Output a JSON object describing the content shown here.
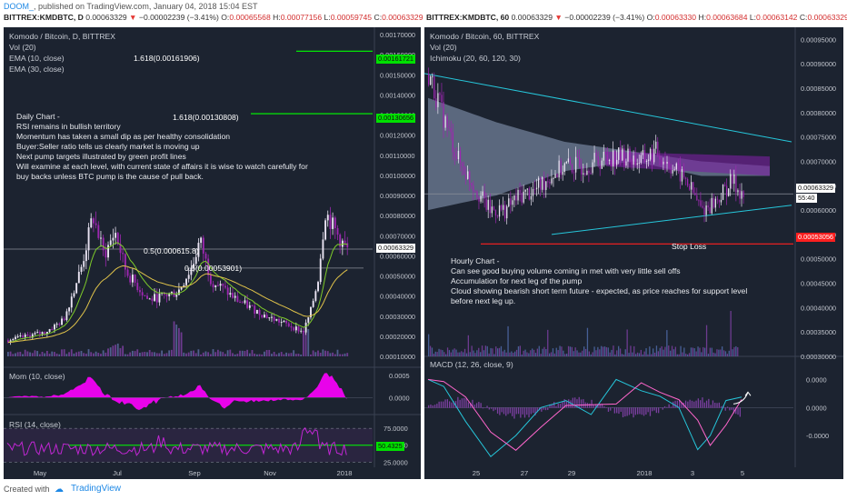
{
  "header": {
    "user": "DOOM_",
    "published": ", published on TradingView.com, January 04, 2018 15:04 EST"
  },
  "left_quote": {
    "symbol": "BITTREX:KMDBTC, D",
    "price": "0.00063329",
    "arrow": "▼",
    "change": "−0.00002239 (−3.41%)",
    "o_label": "O:",
    "o": "0.00065568",
    "h_label": "H:",
    "h": "0.00077156",
    "l_label": "L:",
    "l": "0.00059745",
    "c_label": "C:",
    "c": "0.00063329"
  },
  "right_quote": {
    "symbol": "BITTREX:KMDBTC, 60",
    "price": "0.00063329",
    "arrow": "▼",
    "change": "−0.00002239 (−3.41%)",
    "o_label": "O:",
    "o": "0.00063330",
    "h_label": "H:",
    "h": "0.00063684",
    "l_label": "L:",
    "l": "0.00063142",
    "c_label": "C:",
    "c": "0.00063329"
  },
  "left_chart": {
    "title": "Komodo / Bitcoin, D, BITTREX",
    "indicators": [
      "Vol (20)",
      "EMA (10, close)",
      "EMA (30, close)"
    ],
    "fib_labels": [
      "1.618(0.00161906)",
      "1.618(0.00130808)",
      "0.5(0.000615.8)",
      "0.5(0.00053901)"
    ],
    "note": [
      "Daily Chart -",
      "RSI remains in bullish territory",
      "Momentum has taken a small dip as per healthy consolidation",
      "Buyer:Seller ratio tells us clearly market is moving up",
      "Next pump targets illustrated by green profit lines",
      "Will examine at each level, with current state of affairs it is wise to watch carefully for",
      "buy backs unless BTC pump is the cause of pull back."
    ],
    "price_box": "0.00063329",
    "green_box_1": "0.00161721",
    "green_box_2": "0.00130656",
    "mom_label": "Mom (10, close)",
    "rsi_label": "RSI (14, close)",
    "rsi_box": "50.4325",
    "colors": {
      "candle_up": "#e9e3f2",
      "candle_down": "#9c27b0",
      "ema10": "#7ecb2a",
      "ema30": "#e0c34a",
      "mom": "#ff00ff",
      "rsi": "#c026d3",
      "fib_green": "#00ff00"
    }
  },
  "right_chart": {
    "title": "Komodo / Bitcoin, 60, BITTREX",
    "indicators": [
      "Vol (20)",
      "Ichimoku (20, 60, 120, 30)"
    ],
    "stop_loss": "Stop Loss",
    "price_box": "0.00063329",
    "time_box": "55:40",
    "red_box": "0.00053056",
    "note": [
      "Hourly Chart -",
      "Can see good buying volume coming in met with very little sell offs",
      "Accumulation for next leg of the pump",
      "Cloud showing bearish short term future - expected, as price reaches for support level",
      "before next leg up."
    ],
    "macd_label": "MACD (12, 26, close, 9)",
    "colors": {
      "trendline": "#26c6da",
      "cloud": "#8fa3c0",
      "cloud_bear": "#7b1fa2",
      "stop": "#ff1f1f",
      "macd": "#26c6da",
      "signal": "#ff66cc"
    }
  },
  "chart_data": [
    {
      "type": "candlestick",
      "title": "Komodo / Bitcoin, D, BITTREX",
      "ylim": [
        0.0001,
        0.0017
      ],
      "yticks": [
        0.0017,
        0.0016,
        0.0015,
        0.0014,
        0.0013,
        0.0012,
        0.0011,
        0.001,
        0.0009,
        0.0008,
        0.0007,
        0.0006,
        0.0005,
        0.0004,
        0.0003,
        0.0002,
        0.0001
      ],
      "ytick_labels": [
        "0.00170000",
        "0.00160000",
        "0.00150000",
        "0.00140000",
        "0.00130000",
        "0.00120000",
        "0.00110000",
        "0.00100000",
        "0.00090000",
        "0.00080000",
        "0.00070000",
        "0.00060000",
        "0.00050000",
        "0.00040000",
        "0.00030000",
        "0.00020000",
        "0.00010000"
      ],
      "x_labels": [
        "May",
        "Jul",
        "Sep",
        "Nov",
        "2018"
      ],
      "close_path": {
        "x_frac": [
          0.0,
          0.05,
          0.1,
          0.15,
          0.2,
          0.23,
          0.26,
          0.29,
          0.32,
          0.35,
          0.38,
          0.42,
          0.46,
          0.5,
          0.52,
          0.55,
          0.58,
          0.62,
          0.66,
          0.7,
          0.74,
          0.78,
          0.8,
          0.82,
          0.84,
          0.86,
          0.88,
          0.9,
          0.92
        ],
        "y": [
          0.00018,
          0.0002,
          0.00022,
          0.00028,
          0.00055,
          0.0008,
          0.0006,
          0.00072,
          0.00052,
          0.00045,
          0.00038,
          0.0004,
          0.00042,
          0.00055,
          0.00068,
          0.00048,
          0.00044,
          0.00038,
          0.00034,
          0.0003,
          0.00027,
          0.00024,
          0.00022,
          0.00032,
          0.00048,
          0.00082,
          0.00075,
          0.00068,
          0.00063
        ]
      },
      "fib_lines": [
        0.0016172,
        0.0013066
      ],
      "last_price": 0.00063329
    },
    {
      "type": "line",
      "title": "Mom (10, close)",
      "ylim": [
        -0.0003,
        0.0006
      ],
      "yticks": [
        0.0005,
        0.0
      ],
      "ytick_labels": [
        "0.0005",
        "0.0000"
      ]
    },
    {
      "type": "line",
      "title": "RSI (14, close)",
      "ylim": [
        20,
        90
      ],
      "yticks": [
        75,
        50,
        25
      ],
      "ytick_labels": [
        "75.0000",
        "50.0000",
        "25.0000"
      ],
      "last_value": 50.4325
    },
    {
      "type": "candlestick",
      "title": "Komodo / Bitcoin, 60, BITTREX",
      "ylim": [
        0.0003,
        0.00096
      ],
      "yticks": [
        0.00095,
        0.0009,
        0.00085,
        0.0008,
        0.00075,
        0.0007,
        0.00065,
        0.0006,
        0.00055,
        0.0005,
        0.00045,
        0.0004,
        0.00035,
        0.0003
      ],
      "ytick_labels": [
        "0.00095000",
        "0.00090000",
        "0.00085000",
        "0.00080000",
        "0.00075000",
        "0.00070000",
        "0.00065000",
        "0.00060000",
        "0.00055000",
        "0.00050000",
        "0.00045000",
        "0.00040000",
        "0.00035000",
        "0.00030000"
      ],
      "x_labels": [
        "25",
        "27",
        "29",
        "2018",
        "3",
        "5"
      ],
      "close_path": {
        "x_frac": [
          0.0,
          0.04,
          0.08,
          0.12,
          0.16,
          0.2,
          0.24,
          0.28,
          0.32,
          0.36,
          0.4,
          0.44,
          0.48,
          0.52,
          0.56,
          0.6,
          0.64,
          0.68,
          0.72,
          0.76,
          0.8,
          0.83
        ],
        "y": [
          0.00088,
          0.00079,
          0.0007,
          0.00065,
          0.0006,
          0.0006,
          0.00063,
          0.00064,
          0.00067,
          0.00069,
          0.00069,
          0.0007,
          0.00071,
          0.00071,
          0.0007,
          0.00072,
          0.00069,
          0.00066,
          0.0006,
          0.00062,
          0.00066,
          0.00063
        ]
      },
      "stop_loss": 0.00053056,
      "last_price": 0.00063329
    },
    {
      "type": "line",
      "title": "MACD (12, 26, close, 9)",
      "ylim": [
        -4e-05,
        3e-05
      ],
      "yticks": [
        2e-05,
        0.0,
        -2e-05
      ],
      "ytick_labels": [
        "0.0000",
        "0.0000",
        "-0.0000"
      ]
    }
  ]
}
